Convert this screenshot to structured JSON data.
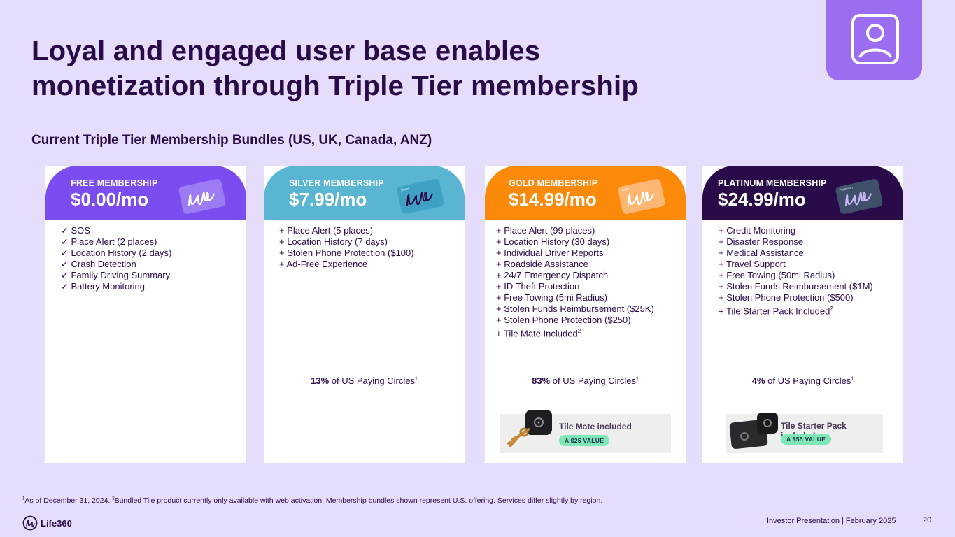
{
  "title": {
    "line1": "Loyal and engaged user base enables",
    "line2": "monetization through Triple Tier membership"
  },
  "subtitle": "Current Triple Tier Membership Bundles (US, UK, Canada, ANZ)",
  "colors": {
    "background": "#e6dcfb",
    "free": "#7b4df0",
    "silver": "#5ab5d3",
    "gold": "#fb8a0a",
    "platinum": "#2a0b4a",
    "text": "#2a0b4a"
  },
  "tiers": [
    {
      "name": "FREE MEMBERSHIP",
      "price": "$0.00/mo",
      "card_label": "",
      "features": [
        "✓ SOS",
        "✓ Place Alert (2 places)",
        "✓ Location History (2 days)",
        "✓ Crash Detection",
        "✓ Family Driving Summary",
        "✓ Battery Monitoring"
      ],
      "share_value": "",
      "share_text": ""
    },
    {
      "name": "SILVER MEMBERSHIP",
      "price": "$7.99/mo",
      "card_label": "Silver",
      "features": [
        "+ Place Alert (5 places)",
        "+ Location History (7 days)",
        "+ Stolen Phone Protection ($100)",
        "+ Ad-Free Experience"
      ],
      "share_value": "13%",
      "share_text": " of US Paying Circles"
    },
    {
      "name": "GOLD MEMBERSHIP",
      "price": "$14.99/mo",
      "card_label": "Gold",
      "features": [
        "+ Place Alert (99 places)",
        "+ Location History (30 days)",
        "+ Individual Driver Reports",
        "+ Roadside Assistance",
        "+ 24/7 Emergency Dispatch",
        "+ ID Theft Protection",
        "+ Free Towing (5mi Radius)",
        "+ Stolen Funds Reimbursement ($25K)",
        "+ Stolen Phone Protection ($250)",
        "+ Tile Mate Included"
      ],
      "share_value": "83%",
      "share_text": " of US Paying Circles"
    },
    {
      "name": "PLATINUM MEMBERSHIP",
      "price": "$24.99/mo",
      "card_label": "Platinum",
      "features": [
        "+ Credit Monitoring",
        "+ Disaster Response",
        "+ Medical Assistance",
        "+ Travel Support",
        "+ Free Towing (50mi Radius)",
        "+ Stolen Funds Reimbursement ($1M)",
        "+ Stolen Phone Protection ($500)",
        "+ Tile Starter Pack Included"
      ],
      "share_value": "4%",
      "share_text": " of US Paying Circles"
    }
  ],
  "footnote_mark": "1",
  "feature_footnote_mark": "2",
  "promos": {
    "gold": {
      "title": "Tile Mate included",
      "badge": "A $25 VALUE"
    },
    "platinum": {
      "title": "Tile Starter Pack included",
      "badge": "A $55 VALUE"
    }
  },
  "footnote": {
    "mark1": "1",
    "text1": "As of December 31, 2024. ",
    "mark2": "2",
    "text2": "Bundled Tile product currently only available with web activation. Membership bundles shown represent U.S. offering.  Services differ slightly by region."
  },
  "footer": {
    "logo_text": "Life360",
    "right_text": "Investor Presentation  | February 2025",
    "page_number": "20"
  },
  "icons": {
    "corner": "user-profile-icon",
    "logo": "life360-logo-icon"
  }
}
